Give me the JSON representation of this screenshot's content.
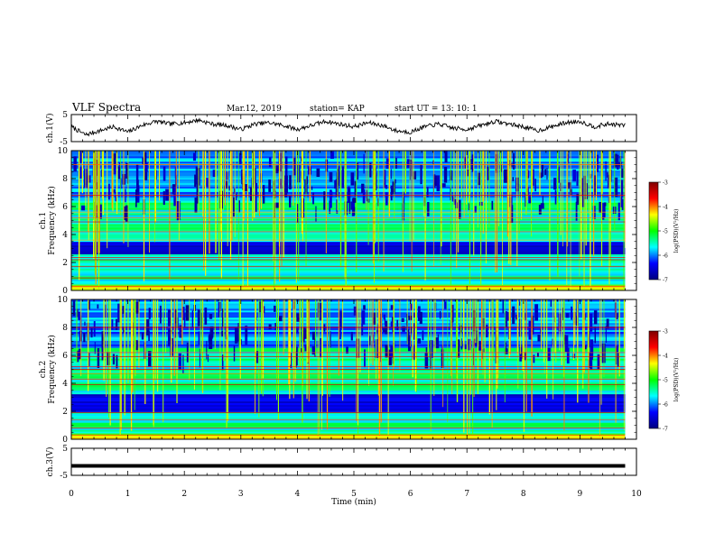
{
  "header": {
    "title": "VLF Spectra",
    "date": "Mar.12, 2019",
    "station": "station= KAP",
    "start": "start  UT =   13: 10: 1"
  },
  "chart_data": [
    {
      "type": "line",
      "panel": "waveform ch.1",
      "ylabel": "ch.1(V)",
      "ylim": [
        -5,
        5
      ],
      "yticks": [
        "5",
        "-5"
      ],
      "xlim": [
        0,
        10
      ],
      "series": [
        {
          "x": [
            0,
            0.25,
            0.5,
            0.75,
            1,
            1.25,
            1.5,
            1.75,
            2,
            2.25,
            2.5,
            2.75,
            3,
            3.25,
            3.5,
            3.75,
            4,
            4.25,
            4.5,
            4.75,
            5,
            5.25,
            5.5,
            5.75,
            6,
            6.25,
            6.5,
            6.75,
            7,
            7.25,
            7.5,
            7.75,
            8,
            8.25,
            8.5,
            8.75,
            9,
            9.25,
            9.5,
            9.8
          ],
          "values": [
            0.5,
            -2.5,
            -1.0,
            0.5,
            -1.5,
            1.0,
            2.5,
            1.5,
            2.0,
            3.0,
            1.5,
            1.0,
            -0.5,
            1.5,
            2.0,
            1.0,
            -0.5,
            1.0,
            2.5,
            1.5,
            0.5,
            2.0,
            1.0,
            -1.0,
            -1.5,
            0.5,
            1.5,
            0.0,
            -0.5,
            1.0,
            2.5,
            1.5,
            0.5,
            -1.0,
            0.5,
            2.0,
            2.5,
            0.5,
            1.5,
            1.0
          ]
        }
      ]
    },
    {
      "type": "heatmap",
      "panel": "spectrogram ch.1",
      "ylabel": "ch.1\nFrequency  (kHz)",
      "ylim": [
        0,
        10
      ],
      "yticks": [
        "10",
        "8",
        "6",
        "4",
        "2",
        "0"
      ],
      "xlim": [
        0,
        10
      ],
      "colorbar": {
        "label": "log(PSD)(V²/Hz)",
        "range": [
          -7,
          -3
        ],
        "ticks": [
          "-3",
          "-4",
          "-5",
          "-6",
          "-7"
        ]
      }
    },
    {
      "type": "heatmap",
      "panel": "spectrogram ch.2",
      "ylabel": "ch.2\nFrequency  (kHz)",
      "ylim": [
        0,
        10
      ],
      "yticks": [
        "10",
        "8",
        "6",
        "4",
        "2",
        "0"
      ],
      "xlim": [
        0,
        10
      ],
      "colorbar": {
        "label": "log(PSD)(V²/Hz)",
        "range": [
          -7,
          -3
        ],
        "ticks": [
          "-3",
          "-4",
          "-5",
          "-6",
          "-7"
        ]
      }
    },
    {
      "type": "line",
      "panel": "waveform ch.3",
      "ylabel": "ch.3(V)",
      "ylim": [
        -5,
        5
      ],
      "yticks": [
        "5",
        "-5"
      ],
      "xlim": [
        0,
        10
      ],
      "series": [
        {
          "x": [
            0,
            9.8
          ],
          "values": [
            -1.5,
            -1.5
          ]
        }
      ]
    }
  ],
  "xaxis": {
    "label": "Time  (min)",
    "ticks": [
      "0",
      "1",
      "2",
      "3",
      "4",
      "5",
      "6",
      "7",
      "8",
      "9",
      "10"
    ]
  },
  "colors": {
    "waveform": "#000000",
    "colormap": [
      "#00007f",
      "#0000ff",
      "#00ffff",
      "#00ff00",
      "#ffff00",
      "#ff0000",
      "#7f0000"
    ]
  }
}
